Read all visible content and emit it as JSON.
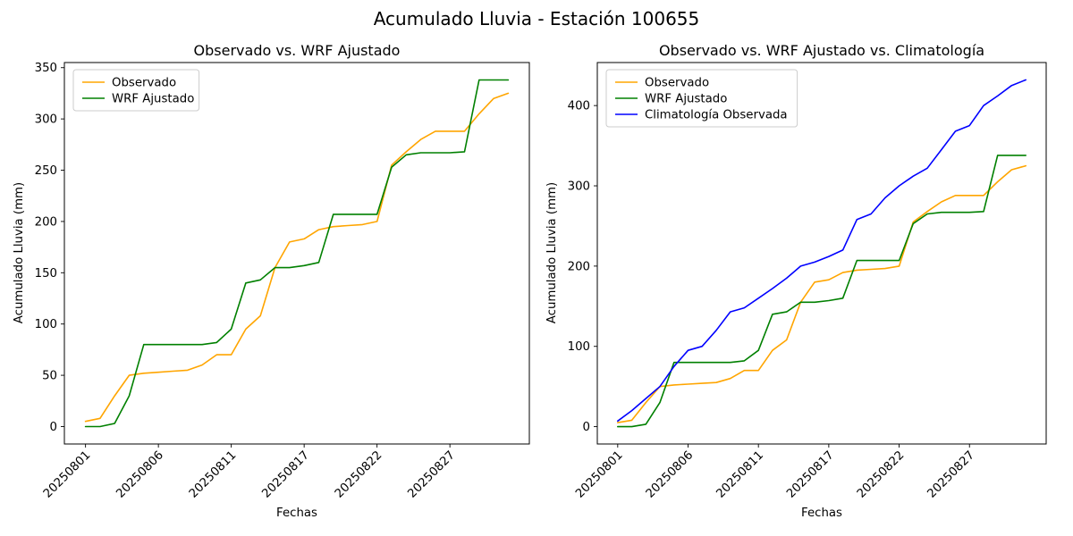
{
  "figure": {
    "title": "Acumulado Lluvia - Estación 100655",
    "background": "#ffffff"
  },
  "chart_data": [
    {
      "type": "line",
      "title": "Observado vs. WRF Ajustado",
      "xlabel": "Fechas",
      "ylabel": "Acumulado Lluvia (mm)",
      "x": [
        "20250801",
        "20250802",
        "20250803",
        "20250804",
        "20250805",
        "20250806",
        "20250807",
        "20250808",
        "20250809",
        "20250810",
        "20250811",
        "20250812",
        "20250813",
        "20250814",
        "20250815",
        "20250817",
        "20250818",
        "20250819",
        "20250820",
        "20250821",
        "20250822",
        "20250823",
        "20250824",
        "20250825",
        "20250826",
        "20250827",
        "20250828",
        "20250829",
        "20250830",
        "20250831"
      ],
      "xtick_indices": [
        0,
        5,
        10,
        15,
        20,
        25
      ],
      "yticks": [
        0,
        50,
        100,
        150,
        200,
        250,
        300,
        350
      ],
      "ylim": [
        -17,
        355
      ],
      "grid": false,
      "legend_position": "upper left",
      "series": [
        {
          "name": "Observado",
          "color": "#ffa500",
          "values": [
            5,
            8,
            30,
            50,
            52,
            53,
            54,
            55,
            60,
            70,
            70,
            95,
            108,
            155,
            180,
            183,
            192,
            195,
            196,
            197,
            200,
            255,
            268,
            280,
            288,
            288,
            288,
            305,
            320,
            325
          ]
        },
        {
          "name": "WRF Ajustado",
          "color": "#008000",
          "values": [
            0,
            0,
            3,
            30,
            80,
            80,
            80,
            80,
            80,
            82,
            95,
            140,
            143,
            155,
            155,
            157,
            160,
            207,
            207,
            207,
            207,
            253,
            265,
            267,
            267,
            267,
            268,
            338,
            338,
            338
          ]
        }
      ]
    },
    {
      "type": "line",
      "title": "Observado vs. WRF Ajustado vs. Climatología",
      "xlabel": "Fechas",
      "ylabel": "Acumulado Lluvia (mm)",
      "x": [
        "20250801",
        "20250802",
        "20250803",
        "20250804",
        "20250805",
        "20250806",
        "20250807",
        "20250808",
        "20250809",
        "20250810",
        "20250811",
        "20250812",
        "20250813",
        "20250814",
        "20250815",
        "20250817",
        "20250818",
        "20250819",
        "20250820",
        "20250821",
        "20250822",
        "20250823",
        "20250824",
        "20250825",
        "20250826",
        "20250827",
        "20250828",
        "20250829",
        "20250830",
        "20250831"
      ],
      "xtick_indices": [
        0,
        5,
        10,
        15,
        20,
        25
      ],
      "yticks": [
        0,
        100,
        200,
        300,
        400
      ],
      "ylim": [
        -21.6,
        453.6
      ],
      "grid": false,
      "legend_position": "upper left",
      "series": [
        {
          "name": "Observado",
          "color": "#ffa500",
          "values": [
            5,
            8,
            30,
            50,
            52,
            53,
            54,
            55,
            60,
            70,
            70,
            95,
            108,
            155,
            180,
            183,
            192,
            195,
            196,
            197,
            200,
            255,
            268,
            280,
            288,
            288,
            288,
            305,
            320,
            325
          ]
        },
        {
          "name": "WRF Ajustado",
          "color": "#008000",
          "values": [
            0,
            0,
            3,
            30,
            80,
            80,
            80,
            80,
            80,
            82,
            95,
            140,
            143,
            155,
            155,
            157,
            160,
            207,
            207,
            207,
            207,
            253,
            265,
            267,
            267,
            267,
            268,
            338,
            338,
            338
          ]
        },
        {
          "name": "Climatología Observada",
          "color": "#0000ff",
          "values": [
            7,
            20,
            35,
            50,
            75,
            95,
            100,
            120,
            143,
            148,
            160,
            172,
            185,
            200,
            205,
            212,
            220,
            258,
            265,
            285,
            300,
            312,
            322,
            345,
            368,
            375,
            400,
            412,
            425,
            432
          ]
        }
      ]
    }
  ]
}
